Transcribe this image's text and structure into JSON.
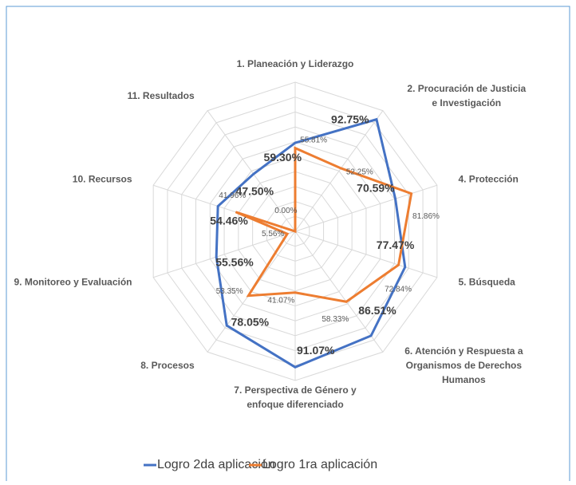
{
  "chart_data": {
    "type": "radar",
    "categories": [
      "1. Planeación y Liderazgo",
      "2. Procuración de Justicia e Investigación",
      "4. Protección",
      "5. Búsqueda",
      "6. Atención y Respuesta a Organismos de Derechos Humanos",
      "7. Perspectiva de Género y enfoque diferenciado",
      "8. Procesos",
      "9. Monitoreo y Evaluación",
      "10. Recursos",
      "11. Resultados"
    ],
    "series": [
      {
        "name": "Logro 2da aplicación",
        "color": "#4472c4",
        "values": [
          59.3,
          92.75,
          70.59,
          77.47,
          86.51,
          91.07,
          78.05,
          55.56,
          54.46,
          47.5
        ],
        "value_labels": [
          "59.30%",
          "92.75%",
          "70.59%",
          "77.47%",
          "86.51%",
          "91.07%",
          "78.05%",
          "55.56%",
          "54.46%",
          "47.50%"
        ]
      },
      {
        "name": "Logro 1ra aplicación",
        "color": "#ed7d31",
        "values": [
          55.81,
          52.25,
          81.86,
          72.84,
          58.33,
          41.07,
          53.35,
          5.56,
          41.96,
          0.0
        ],
        "value_labels": [
          "55.81%",
          "52.25%",
          "81.86%",
          "72.84%",
          "58.33%",
          "41.07%",
          "53.35%",
          "5.56%",
          "41.96%",
          "0.00%"
        ]
      }
    ],
    "ylim": [
      0,
      100
    ],
    "yticks": [
      0,
      10,
      20,
      30,
      40,
      50,
      60,
      70,
      80,
      90,
      100
    ],
    "legend": "bottom"
  }
}
